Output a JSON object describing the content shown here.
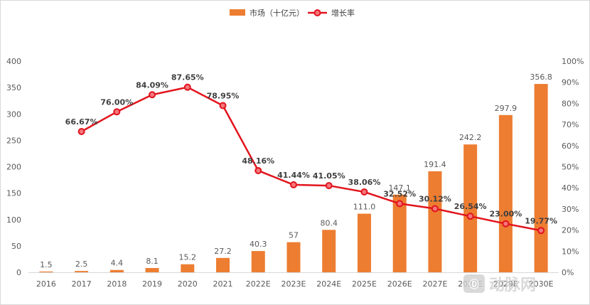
{
  "chart_data": {
    "type": "bar",
    "categories": [
      "2016",
      "2017",
      "2018",
      "2019",
      "2020",
      "2021",
      "2022E",
      "2023E",
      "2024E",
      "2025E",
      "2026E",
      "2027E",
      "2028E",
      "2029E",
      "2030E"
    ],
    "series": [
      {
        "name": "市场（十亿元）",
        "type": "bar",
        "axis": "left",
        "values": [
          1.5,
          2.5,
          4.4,
          8.1,
          15.2,
          27.2,
          40.3,
          57,
          80.4,
          111.0,
          147.1,
          191.4,
          242.2,
          297.9,
          356.8
        ],
        "labels": [
          "1.5",
          "2.5",
          "4.4",
          "8.1",
          "15.2",
          "27.2",
          "40.3",
          "57",
          "80.4",
          "111.0",
          "147.1",
          "191.4",
          "242.2",
          "297.9",
          "356.8"
        ]
      },
      {
        "name": "增长率",
        "type": "line",
        "axis": "right",
        "values": [
          null,
          66.67,
          76.0,
          84.09,
          87.65,
          78.95,
          48.16,
          41.44,
          41.05,
          38.06,
          32.52,
          30.12,
          26.54,
          23.0,
          19.77
        ],
        "labels": [
          "",
          "66.67%",
          "76.00%",
          "84.09%",
          "87.65%",
          "78.95%",
          "48.16%",
          "41.44%",
          "41.05%",
          "38.06%",
          "32.52%",
          "30.12%",
          "26.54%",
          "23.00%",
          "19.77%"
        ]
      }
    ],
    "left_axis": {
      "ylim": [
        0,
        400
      ],
      "ticks": [
        "0",
        "50",
        "100",
        "150",
        "200",
        "250",
        "300",
        "350",
        "400"
      ]
    },
    "right_axis": {
      "ylim": [
        0,
        100
      ],
      "ticks": [
        "0%",
        "10%",
        "20%",
        "30%",
        "40%",
        "50%",
        "60%",
        "70%",
        "80%",
        "90%",
        "100%"
      ]
    },
    "grid": false,
    "legend_position": "top-center",
    "colors": {
      "bar": "#ed7d31",
      "line": "#e2141d",
      "marker_fill": "#f4777c"
    }
  },
  "watermark": {
    "text": "动脉网"
  }
}
